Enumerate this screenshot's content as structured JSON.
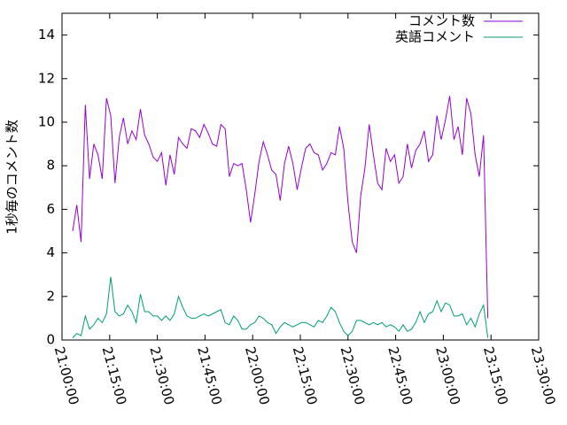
{
  "chart_data": {
    "type": "line",
    "ylabel": "1秒毎のコメント数",
    "x": [
      "21:03:20",
      "21:04:40",
      "21:06:00",
      "21:07:20",
      "21:08:40",
      "21:10:00",
      "21:11:20",
      "21:12:40",
      "21:14:00",
      "21:15:20",
      "21:16:40",
      "21:18:00",
      "21:19:20",
      "21:20:40",
      "21:22:00",
      "21:23:20",
      "21:24:40",
      "21:26:00",
      "21:27:20",
      "21:28:40",
      "21:30:00",
      "21:31:20",
      "21:32:40",
      "21:34:00",
      "21:35:20",
      "21:36:40",
      "21:38:00",
      "21:39:20",
      "21:40:40",
      "21:42:00",
      "21:43:20",
      "21:44:40",
      "21:46:00",
      "21:47:20",
      "21:48:40",
      "21:50:00",
      "21:51:20",
      "21:52:40",
      "21:54:00",
      "21:55:20",
      "21:56:40",
      "21:58:00",
      "21:59:20",
      "22:00:40",
      "22:02:00",
      "22:03:20",
      "22:04:40",
      "22:06:00",
      "22:07:20",
      "22:08:40",
      "22:10:00",
      "22:11:20",
      "22:12:40",
      "22:14:00",
      "22:15:20",
      "22:16:40",
      "22:18:00",
      "22:19:20",
      "22:20:40",
      "22:22:00",
      "22:23:20",
      "22:24:40",
      "22:26:00",
      "22:27:20",
      "22:28:40",
      "22:30:00",
      "22:31:20",
      "22:32:40",
      "22:34:00",
      "22:35:20",
      "22:36:40",
      "22:38:00",
      "22:39:20",
      "22:40:40",
      "22:42:00",
      "22:43:20",
      "22:44:40",
      "22:46:00",
      "22:47:20",
      "22:48:40",
      "22:50:00",
      "22:51:20",
      "22:52:40",
      "22:54:00",
      "22:55:20",
      "22:56:40",
      "22:58:00",
      "22:59:20",
      "23:00:40",
      "23:02:00",
      "23:03:20",
      "23:04:40",
      "23:06:00",
      "23:07:20",
      "23:08:40",
      "23:10:00",
      "23:11:20",
      "23:12:40",
      "23:14:00"
    ],
    "series": [
      {
        "name": "コメント数",
        "color": "#9400d3",
        "values": [
          5.0,
          6.2,
          4.5,
          10.8,
          7.4,
          9.0,
          8.5,
          7.4,
          11.1,
          10.3,
          7.2,
          9.3,
          10.2,
          9.0,
          9.6,
          9.2,
          10.6,
          9.4,
          9.0,
          8.4,
          8.2,
          8.6,
          7.1,
          8.5,
          7.6,
          9.3,
          9.0,
          8.8,
          9.7,
          9.6,
          9.3,
          9.9,
          9.5,
          9.0,
          8.9,
          9.9,
          9.7,
          7.5,
          8.1,
          8.0,
          8.1,
          6.9,
          5.4,
          6.7,
          8.2,
          9.1,
          8.5,
          7.8,
          7.6,
          6.4,
          8.1,
          8.9,
          8.1,
          6.9,
          7.9,
          8.8,
          9.0,
          8.6,
          8.5,
          7.8,
          8.1,
          8.6,
          8.5,
          9.8,
          8.8,
          6.3,
          4.5,
          4.0,
          6.6,
          7.9,
          9.9,
          8.5,
          7.2,
          6.9,
          8.8,
          8.2,
          8.5,
          7.2,
          7.5,
          9.0,
          7.9,
          8.7,
          9.0,
          9.6,
          8.2,
          8.5,
          10.3,
          9.2,
          10.1,
          11.2,
          9.2,
          9.8,
          8.5,
          11.1,
          10.4,
          8.5,
          7.5,
          9.4,
          1.0
        ]
      },
      {
        "name": "英語コメント",
        "color": "#009e73",
        "values": [
          0.1,
          0.3,
          0.2,
          1.1,
          0.5,
          0.7,
          1.0,
          0.8,
          1.2,
          2.9,
          1.3,
          1.1,
          1.2,
          1.6,
          1.3,
          0.8,
          2.1,
          1.3,
          1.3,
          1.1,
          1.1,
          0.9,
          1.1,
          0.9,
          1.2,
          2.0,
          1.5,
          1.1,
          1.0,
          1.0,
          1.1,
          1.2,
          1.1,
          1.2,
          1.3,
          1.4,
          0.8,
          0.7,
          1.1,
          0.9,
          0.5,
          0.5,
          0.7,
          0.8,
          1.1,
          1.0,
          0.8,
          0.7,
          0.3,
          0.6,
          0.8,
          0.7,
          0.6,
          0.7,
          0.8,
          0.8,
          0.7,
          0.6,
          0.9,
          0.8,
          1.1,
          1.5,
          1.3,
          0.8,
          0.4,
          0.2,
          0.4,
          0.9,
          0.9,
          0.8,
          0.7,
          0.8,
          0.7,
          0.8,
          0.6,
          0.7,
          0.6,
          0.4,
          0.7,
          0.4,
          0.5,
          0.8,
          1.3,
          0.8,
          1.2,
          1.3,
          1.8,
          1.3,
          1.7,
          1.6,
          1.1,
          1.1,
          1.2,
          0.7,
          1.0,
          0.6,
          1.2,
          1.6,
          0.1
        ]
      }
    ],
    "xlim": [
      "21:00:00",
      "23:30:00"
    ],
    "xticks": [
      "21:00:00",
      "21:15:00",
      "21:30:00",
      "21:45:00",
      "22:00:00",
      "22:15:00",
      "22:30:00",
      "22:45:00",
      "23:00:00",
      "23:15:00",
      "23:30:00"
    ],
    "ylim": [
      0,
      15
    ],
    "yticks": [
      0,
      2,
      4,
      6,
      8,
      10,
      12,
      14
    ],
    "legend": "top-right"
  }
}
